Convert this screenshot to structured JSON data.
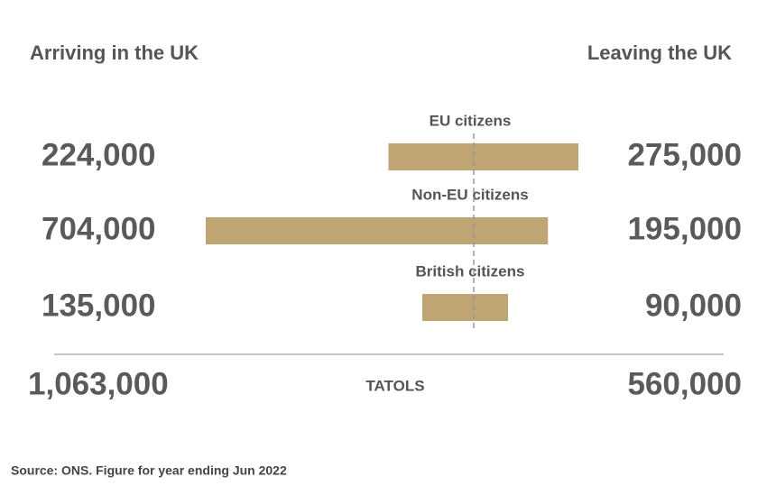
{
  "chart_data": {
    "type": "butterfly",
    "categories": [
      "EU citizens",
      "Non-EU citizens",
      "British citizens"
    ],
    "series": [
      {
        "name": "Arriving in the UK",
        "color": "#c0a574",
        "values": [
          224000,
          704000,
          135000
        ],
        "value_labels": [
          "224,000",
          "704,000",
          "135,000"
        ]
      },
      {
        "name": "Leaving the UK",
        "color": "#c0a574",
        "values": [
          275000,
          195000,
          90000
        ],
        "value_labels": [
          "275,000",
          "195,000",
          "90,000"
        ]
      }
    ],
    "totals": {
      "label": "TATOLS",
      "values": [
        1063000,
        560000
      ],
      "value_labels": [
        "1,063,000",
        "560,000"
      ]
    },
    "source": "Source: ONS. Figure for year ending Jun 2022"
  }
}
